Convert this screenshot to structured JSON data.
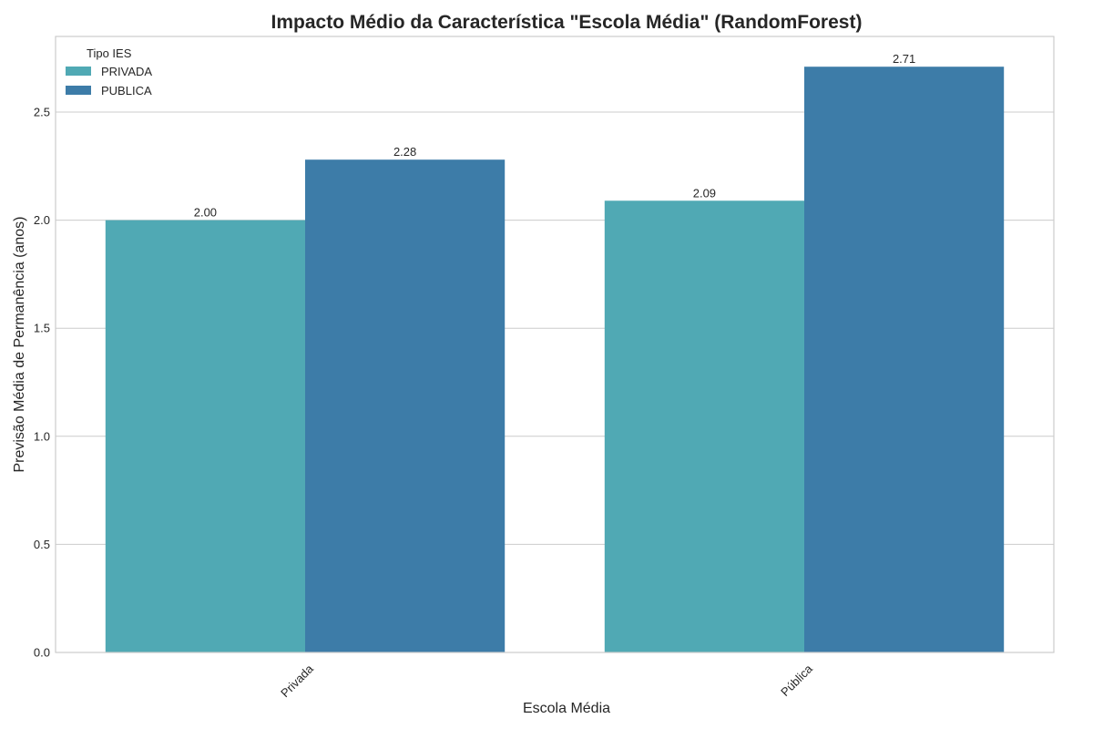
{
  "chart_data": {
    "type": "bar",
    "title": "Impacto Médio da Característica \"Escola Média\" (RandomForest)",
    "xlabel": "Escola Média",
    "ylabel": "Previsão Média de Permanência (anos)",
    "categories": [
      "Privada",
      "Pública"
    ],
    "series": [
      {
        "name": "PRIVADA",
        "color": "#50a9b4",
        "values": [
          2.0,
          2.09
        ],
        "labels": [
          "2.00",
          "2.09"
        ]
      },
      {
        "name": "PUBLICA",
        "color": "#3d7ca8",
        "values": [
          2.28,
          2.71
        ],
        "labels": [
          "2.28",
          "2.71"
        ]
      }
    ],
    "ylim": [
      0,
      2.85
    ],
    "yticks": [
      0.0,
      0.5,
      1.0,
      1.5,
      2.0,
      2.5
    ],
    "ytick_labels": [
      "0.0",
      "0.5",
      "1.0",
      "1.5",
      "2.0",
      "2.5"
    ],
    "grid": true,
    "legend": {
      "title": "Tipo IES",
      "placement": "top-left"
    },
    "xtick_rotation": 45
  }
}
